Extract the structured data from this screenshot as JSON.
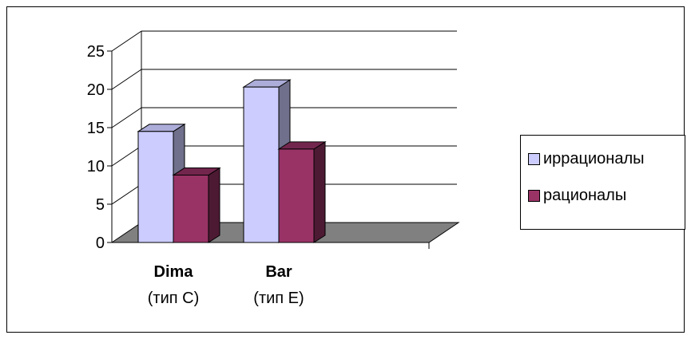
{
  "chart_data": {
    "type": "bar",
    "categories": [
      {
        "name": "Dima",
        "sub": "(тип С)"
      },
      {
        "name": "Bar",
        "sub": "(тип Е)"
      }
    ],
    "series": [
      {
        "name": "иррационалы",
        "values": [
          14.5,
          20.3
        ],
        "color": "#ccccff"
      },
      {
        "name": "рационалы",
        "values": [
          8.8,
          12.2
        ],
        "color": "#993366"
      }
    ],
    "yticks": [
      0,
      5,
      10,
      15,
      20,
      25
    ],
    "ylim": [
      0,
      25
    ],
    "grid": true,
    "legend_position": "right",
    "floor_color": "#808080"
  }
}
